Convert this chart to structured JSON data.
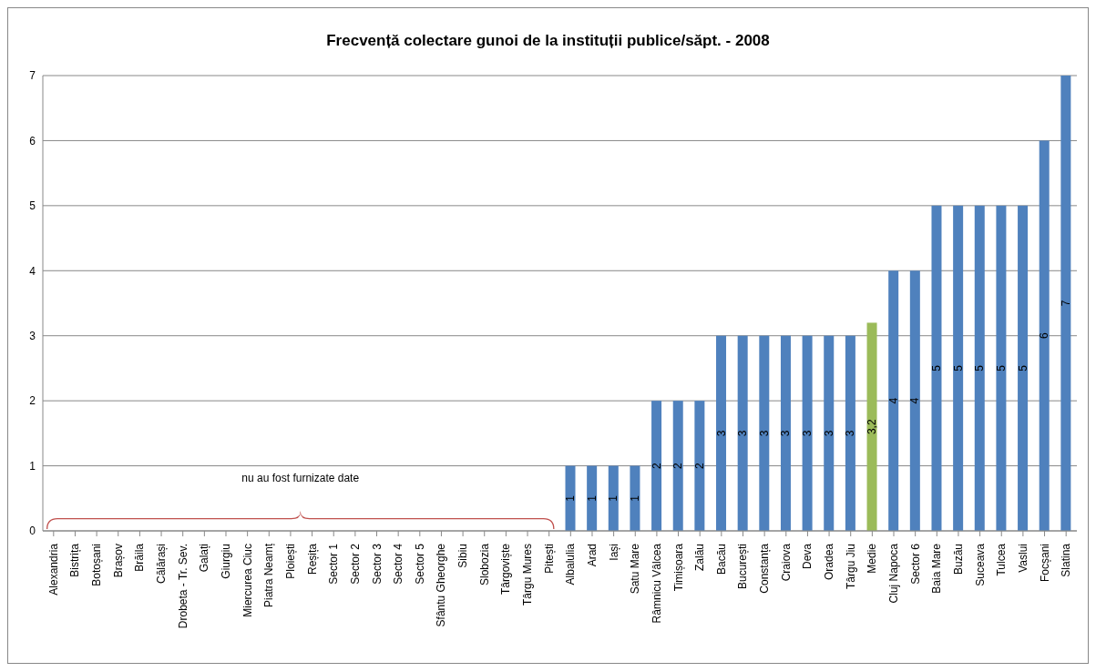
{
  "chart_data": {
    "type": "bar",
    "title": "Frecvență colectare gunoi de la instituții publice/săpt. - 2008",
    "categories": [
      "Alexandria",
      "Bistrița",
      "Botoșani",
      "Brașov",
      "Brăila",
      "Călărași",
      "Drobeta - Tr. Sev.",
      "Galați",
      "Giurgiu",
      "Miercurea Ciuc",
      "Piatra Neamț",
      "Ploiești",
      "Reșița",
      "Sector 1",
      "Sector 2",
      "Sector 3",
      "Sector 4",
      "Sector 5",
      "Sfântu Gheorghe",
      "Sibiu",
      "Slobozia",
      "Târgoviște",
      "Târgu Mures",
      "Pitești",
      "Albalulia",
      "Arad",
      "Iași",
      "Satu Mare",
      "Râmnicu Vâlcea",
      "Timișoara",
      "Zalău",
      "Bacău",
      "București",
      "Constanța",
      "Craiova",
      "Deva",
      "Oradea",
      "Târgu Jiu",
      "Medie",
      "Cluj Napoca",
      "Sector 6",
      "Baia Mare",
      "Buzău",
      "Suceava",
      "Tulcea",
      "Vaslui",
      "Focșani",
      "Slatina"
    ],
    "values": [
      null,
      null,
      null,
      null,
      null,
      null,
      null,
      null,
      null,
      null,
      null,
      null,
      null,
      null,
      null,
      null,
      null,
      null,
      null,
      null,
      null,
      null,
      null,
      null,
      1,
      1,
      1,
      1,
      2,
      2,
      2,
      3,
      3,
      3,
      3,
      3,
      3,
      3,
      3.2,
      4,
      4,
      5,
      5,
      5,
      5,
      5,
      6,
      7
    ],
    "value_labels": [
      null,
      null,
      null,
      null,
      null,
      null,
      null,
      null,
      null,
      null,
      null,
      null,
      null,
      null,
      null,
      null,
      null,
      null,
      null,
      null,
      null,
      null,
      null,
      null,
      "1",
      "1",
      "1",
      "1",
      "2",
      "2",
      "2",
      "3",
      "3",
      "3",
      "3",
      "3",
      "3",
      "3",
      "3,2",
      "4",
      "4",
      "5",
      "5",
      "5",
      "5",
      "5",
      "6",
      "7"
    ],
    "colors": [
      "#4f81bd",
      "#4f81bd",
      "#4f81bd",
      "#4f81bd",
      "#4f81bd",
      "#4f81bd",
      "#4f81bd",
      "#4f81bd",
      "#4f81bd",
      "#4f81bd",
      "#4f81bd",
      "#4f81bd",
      "#4f81bd",
      "#4f81bd",
      "#4f81bd",
      "#4f81bd",
      "#4f81bd",
      "#4f81bd",
      "#4f81bd",
      "#4f81bd",
      "#4f81bd",
      "#4f81bd",
      "#4f81bd",
      "#4f81bd",
      "#4f81bd",
      "#4f81bd",
      "#4f81bd",
      "#4f81bd",
      "#4f81bd",
      "#4f81bd",
      "#4f81bd",
      "#4f81bd",
      "#4f81bd",
      "#4f81bd",
      "#4f81bd",
      "#4f81bd",
      "#4f81bd",
      "#4f81bd",
      "#9bbb59",
      "#4f81bd",
      "#4f81bd",
      "#4f81bd",
      "#4f81bd",
      "#4f81bd",
      "#4f81bd",
      "#4f81bd",
      "#4f81bd",
      "#4f81bd"
    ],
    "ylim": [
      0,
      7
    ],
    "yticks": [
      0,
      1,
      2,
      3,
      4,
      5,
      6,
      7
    ],
    "grid": "y",
    "legend": false,
    "annotations": [
      "nu au fost furnizate date"
    ]
  }
}
